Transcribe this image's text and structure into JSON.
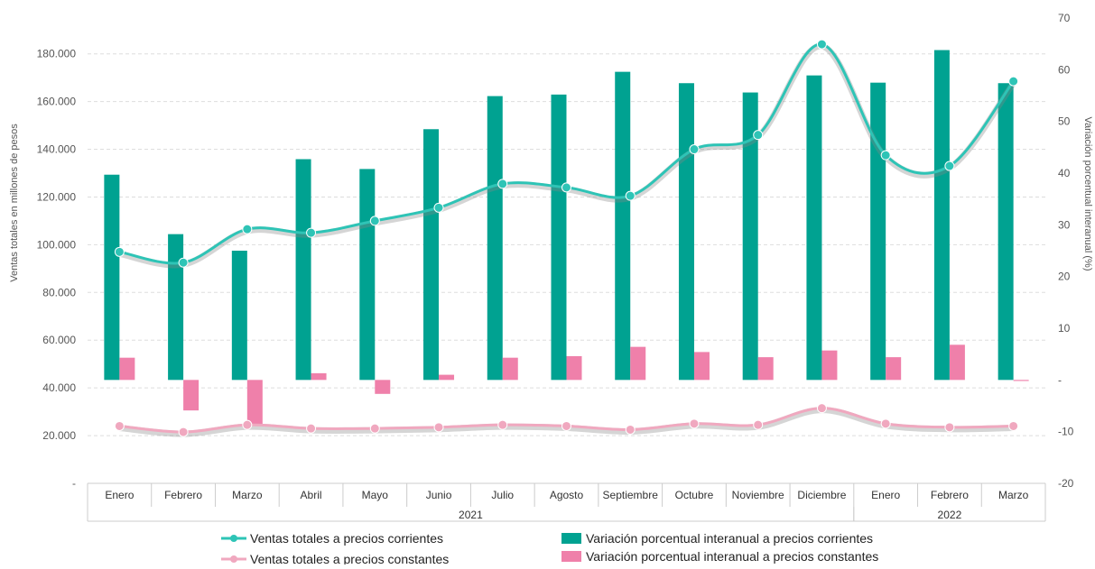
{
  "chart_data": {
    "type": "bar",
    "categories": [
      "Enero",
      "Febrero",
      "Marzo",
      "Abril",
      "Mayo",
      "Junio",
      "Julio",
      "Agosto",
      "Septiembre",
      "Octubre",
      "Noviembre",
      "Diciembre",
      "Enero",
      "Febrero",
      "Marzo"
    ],
    "groups": [
      {
        "label": "2021",
        "count": 12
      },
      {
        "label": "2022",
        "count": 3
      }
    ],
    "y_left": {
      "label": "Ventas totales en millones de pesos",
      "ticks": [
        "-",
        "20.000",
        "40.000",
        "60.000",
        "80.000",
        "100.000",
        "120.000",
        "140.000",
        "160.000",
        "180.000"
      ],
      "range": [
        0,
        195000
      ]
    },
    "y_right": {
      "label": "Variación porcentual interanual (%)",
      "ticks": [
        "-20",
        "-10",
        "-",
        "10",
        "20",
        "30",
        "40",
        "50",
        "60",
        "70"
      ],
      "range": [
        -20,
        70
      ]
    },
    "series": [
      {
        "name": "Ventas totales a precios corrientes",
        "kind": "line",
        "axis": "left",
        "color": "#2ec4b6",
        "shadow": "#888888",
        "values": [
          97000,
          92500,
          106500,
          105000,
          110000,
          115500,
          125500,
          124000,
          120500,
          140000,
          146000,
          184000,
          137500,
          133000,
          168500
        ]
      },
      {
        "name": "Ventas totales a precios constantes",
        "kind": "line",
        "axis": "left",
        "color": "#f0a8bf",
        "shadow": "#888888",
        "values": [
          24000,
          21500,
          24500,
          23000,
          23000,
          23500,
          24500,
          24000,
          22500,
          25000,
          24500,
          31500,
          25000,
          23500,
          24000
        ]
      },
      {
        "name": "Variación porcentual interanual a precios corrientes",
        "kind": "bar",
        "axis": "right",
        "color": "#00a291",
        "values": [
          39.7,
          28.2,
          25.0,
          42.7,
          40.8,
          48.5,
          54.9,
          55.2,
          59.6,
          57.4,
          55.6,
          58.9,
          57.5,
          63.8,
          57.4
        ]
      },
      {
        "name": "Variación porcentual interanual a precios constantes",
        "kind": "bar",
        "axis": "right",
        "color": "#ef80aa",
        "values": [
          4.3,
          -5.9,
          -8.5,
          1.3,
          -2.7,
          1.0,
          4.3,
          4.6,
          6.4,
          5.4,
          4.4,
          5.7,
          4.4,
          6.8,
          -0.2
        ]
      }
    ],
    "grid": true,
    "legend_position": "bottom"
  }
}
